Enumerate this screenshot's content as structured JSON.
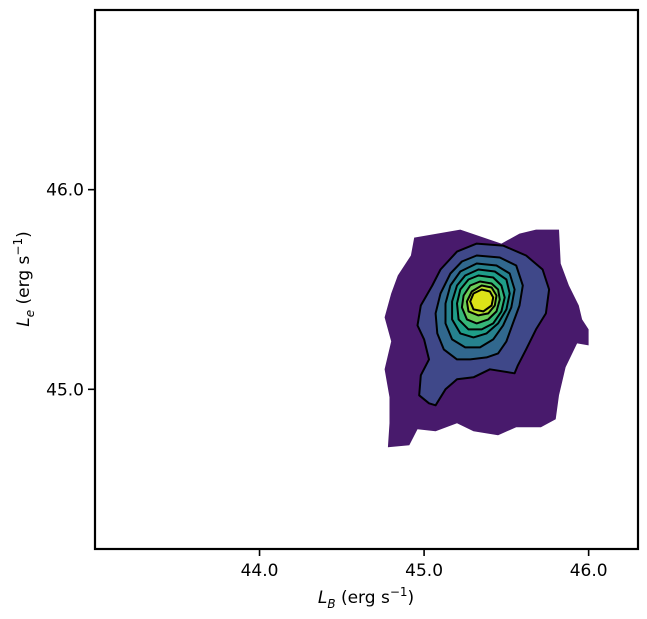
{
  "chart_data": {
    "type": "contour",
    "title": "",
    "xlabel": {
      "main": "L",
      "sub": "B",
      "unit_open": " (erg s",
      "sup": "−1",
      "unit_close": ")"
    },
    "ylabel": {
      "main": "L",
      "sub": "e",
      "unit_open": " (erg s",
      "sup": "−1",
      "unit_close": ")"
    },
    "xlim": [
      43.0,
      46.3
    ],
    "ylim": [
      44.2,
      46.9
    ],
    "x_ticks": [
      {
        "value": 44.0,
        "label": "44.0"
      },
      {
        "value": 45.0,
        "label": "45.0"
      },
      {
        "value": 46.0,
        "label": "46.0"
      }
    ],
    "y_ticks": [
      {
        "value": 45.0,
        "label": "45.0"
      },
      {
        "value": 46.0,
        "label": "46.0"
      }
    ],
    "grid": false,
    "density_peak": {
      "x": 45.35,
      "y": 45.45
    },
    "outer_extent": {
      "x": [
        44.8,
        46.0
      ],
      "y": [
        44.7,
        45.8
      ]
    },
    "fill_colors": [
      "#481a6c",
      "#3f4889",
      "#31688e",
      "#26828e",
      "#1f9e89",
      "#35b779",
      "#6ece58",
      "#b5de2b",
      "#dde318"
    ],
    "contour_levels": [
      {
        "fill": "#481a6c",
        "points": [
          [
            45.82,
            45.8
          ],
          [
            45.68,
            45.8
          ],
          [
            45.58,
            45.78
          ],
          [
            45.47,
            45.73
          ],
          [
            45.22,
            45.8
          ],
          [
            44.94,
            45.76
          ],
          [
            44.92,
            45.67
          ],
          [
            44.84,
            45.57
          ],
          [
            44.8,
            45.48
          ],
          [
            44.76,
            45.36
          ],
          [
            44.8,
            45.24
          ],
          [
            44.76,
            45.1
          ],
          [
            44.79,
            44.96
          ],
          [
            44.79,
            44.83
          ],
          [
            44.78,
            44.71
          ],
          [
            44.91,
            44.72
          ],
          [
            44.96,
            44.8
          ],
          [
            45.07,
            44.79
          ],
          [
            45.2,
            44.83
          ],
          [
            45.3,
            44.79
          ],
          [
            45.45,
            44.77
          ],
          [
            45.56,
            44.81
          ],
          [
            45.71,
            44.81
          ],
          [
            45.8,
            44.85
          ],
          [
            45.82,
            44.97
          ],
          [
            45.86,
            45.11
          ],
          [
            45.93,
            45.23
          ],
          [
            46.0,
            45.22
          ],
          [
            46.0,
            45.3
          ],
          [
            45.96,
            45.35
          ],
          [
            45.94,
            45.42
          ],
          [
            45.88,
            45.52
          ],
          [
            45.83,
            45.63
          ],
          [
            45.82,
            45.8
          ]
        ]
      },
      {
        "fill": "#3f4889",
        "points": [
          [
            45.32,
            45.73
          ],
          [
            45.48,
            45.72
          ],
          [
            45.62,
            45.67
          ],
          [
            45.72,
            45.6
          ],
          [
            45.76,
            45.5
          ],
          [
            45.74,
            45.38
          ],
          [
            45.68,
            45.3
          ],
          [
            45.62,
            45.2
          ],
          [
            45.57,
            45.12
          ],
          [
            45.55,
            45.08
          ],
          [
            45.4,
            45.1
          ],
          [
            45.3,
            45.06
          ],
          [
            45.2,
            45.05
          ],
          [
            45.13,
            45.0
          ],
          [
            45.07,
            44.92
          ],
          [
            45.03,
            44.93
          ],
          [
            44.97,
            44.97
          ],
          [
            44.98,
            45.07
          ],
          [
            45.03,
            45.15
          ],
          [
            45.0,
            45.25
          ],
          [
            44.96,
            45.32
          ],
          [
            44.98,
            45.42
          ],
          [
            45.05,
            45.52
          ],
          [
            45.1,
            45.6
          ],
          [
            45.2,
            45.69
          ],
          [
            45.32,
            45.73
          ]
        ]
      },
      {
        "fill": "#31688e",
        "points": [
          [
            45.32,
            45.67
          ],
          [
            45.46,
            45.66
          ],
          [
            45.56,
            45.62
          ],
          [
            45.6,
            45.52
          ],
          [
            45.58,
            45.42
          ],
          [
            45.54,
            45.33
          ],
          [
            45.5,
            45.24
          ],
          [
            45.45,
            45.18
          ],
          [
            45.38,
            45.16
          ],
          [
            45.28,
            45.15
          ],
          [
            45.2,
            45.15
          ],
          [
            45.12,
            45.2
          ],
          [
            45.08,
            45.28
          ],
          [
            45.07,
            45.38
          ],
          [
            45.1,
            45.48
          ],
          [
            45.16,
            45.58
          ],
          [
            45.23,
            45.64
          ],
          [
            45.32,
            45.67
          ]
        ]
      },
      {
        "fill": "#26828e",
        "points": [
          [
            45.32,
            45.63
          ],
          [
            45.44,
            45.62
          ],
          [
            45.52,
            45.58
          ],
          [
            45.55,
            45.5
          ],
          [
            45.53,
            45.41
          ],
          [
            45.48,
            45.32
          ],
          [
            45.42,
            45.25
          ],
          [
            45.34,
            45.21
          ],
          [
            45.25,
            45.21
          ],
          [
            45.17,
            45.25
          ],
          [
            45.13,
            45.33
          ],
          [
            45.13,
            45.43
          ],
          [
            45.16,
            45.52
          ],
          [
            45.22,
            45.59
          ],
          [
            45.32,
            45.63
          ]
        ]
      },
      {
        "fill": "#1f9e89",
        "points": [
          [
            45.33,
            45.6
          ],
          [
            45.43,
            45.59
          ],
          [
            45.5,
            45.55
          ],
          [
            45.52,
            45.48
          ],
          [
            45.5,
            45.4
          ],
          [
            45.45,
            45.33
          ],
          [
            45.38,
            45.28
          ],
          [
            45.3,
            45.26
          ],
          [
            45.22,
            45.28
          ],
          [
            45.17,
            45.35
          ],
          [
            45.17,
            45.44
          ],
          [
            45.2,
            45.52
          ],
          [
            45.25,
            45.57
          ],
          [
            45.33,
            45.6
          ]
        ]
      },
      {
        "fill": "#35b779",
        "points": [
          [
            45.33,
            45.57
          ],
          [
            45.42,
            45.56
          ],
          [
            45.47,
            45.52
          ],
          [
            45.49,
            45.46
          ],
          [
            45.47,
            45.39
          ],
          [
            45.42,
            45.33
          ],
          [
            45.35,
            45.3
          ],
          [
            45.27,
            45.3
          ],
          [
            45.21,
            45.35
          ],
          [
            45.2,
            45.43
          ],
          [
            45.22,
            45.5
          ],
          [
            45.27,
            45.55
          ],
          [
            45.33,
            45.57
          ]
        ]
      },
      {
        "fill": "#6ece58",
        "points": [
          [
            45.34,
            45.54
          ],
          [
            45.41,
            45.53
          ],
          [
            45.45,
            45.5
          ],
          [
            45.46,
            45.45
          ],
          [
            45.44,
            45.39
          ],
          [
            45.39,
            45.35
          ],
          [
            45.32,
            45.33
          ],
          [
            45.26,
            45.35
          ],
          [
            45.23,
            45.41
          ],
          [
            45.24,
            45.47
          ],
          [
            45.28,
            45.52
          ],
          [
            45.34,
            45.54
          ]
        ]
      },
      {
        "fill": "#b5de2b",
        "points": [
          [
            45.35,
            45.52
          ],
          [
            45.41,
            45.51
          ],
          [
            45.44,
            45.47
          ],
          [
            45.43,
            45.42
          ],
          [
            45.39,
            45.38
          ],
          [
            45.33,
            45.37
          ],
          [
            45.27,
            45.39
          ],
          [
            45.26,
            45.44
          ],
          [
            45.29,
            45.49
          ],
          [
            45.35,
            45.52
          ]
        ]
      },
      {
        "fill": "#dde318",
        "points": [
          [
            45.35,
            45.5
          ],
          [
            45.4,
            45.49
          ],
          [
            45.42,
            45.46
          ],
          [
            45.41,
            45.42
          ],
          [
            45.36,
            45.39
          ],
          [
            45.3,
            45.4
          ],
          [
            45.28,
            45.44
          ],
          [
            45.3,
            45.48
          ],
          [
            45.35,
            45.5
          ]
        ]
      }
    ],
    "contour_outlines": [
      1,
      2,
      3,
      4,
      5,
      6,
      7,
      8
    ]
  }
}
